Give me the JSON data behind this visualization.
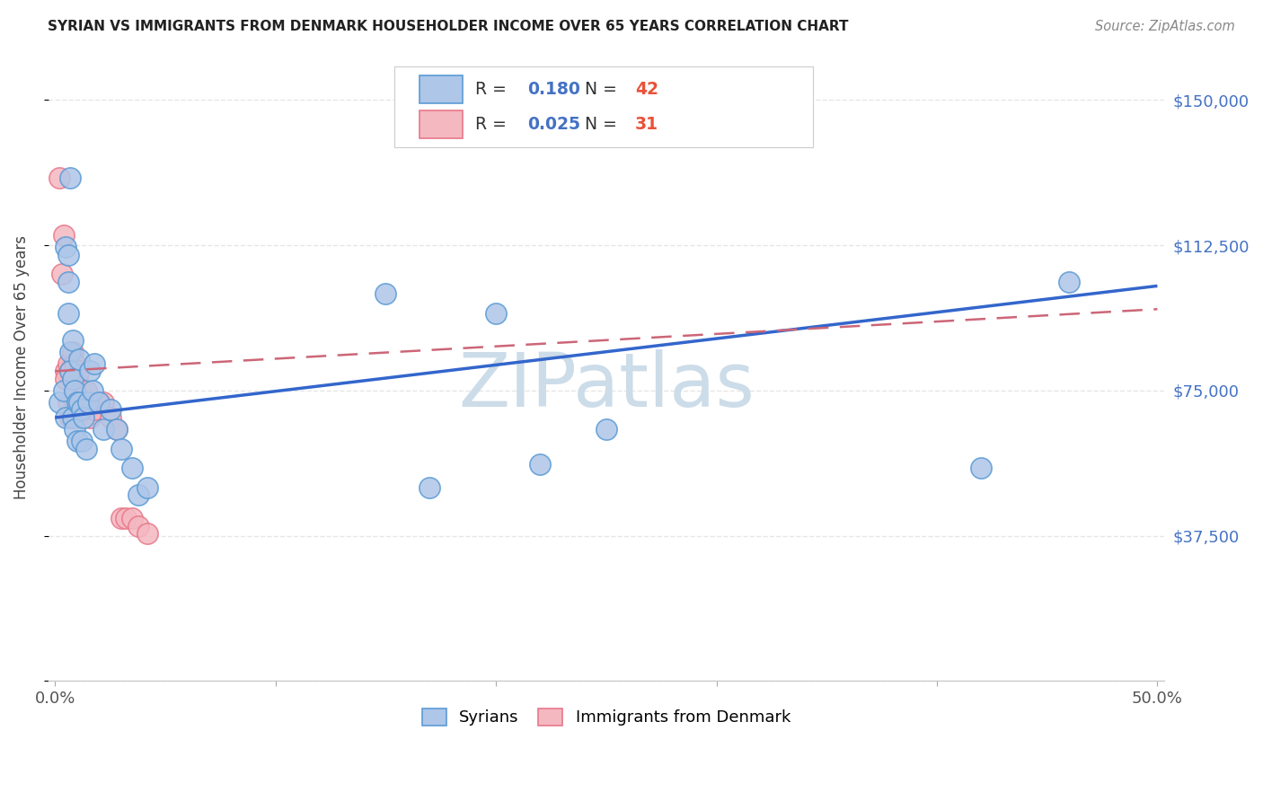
{
  "title": "SYRIAN VS IMMIGRANTS FROM DENMARK HOUSEHOLDER INCOME OVER 65 YEARS CORRELATION CHART",
  "source": "Source: ZipAtlas.com",
  "ylabel": "Householder Income Over 65 years",
  "xlim": [
    -0.003,
    0.503
  ],
  "ylim": [
    0,
    162000
  ],
  "yticks": [
    0,
    37500,
    75000,
    112500,
    150000
  ],
  "yticklabels_right": [
    "",
    "$37,500",
    "$75,000",
    "$112,500",
    "$150,000"
  ],
  "xticks": [
    0.0,
    0.1,
    0.2,
    0.3,
    0.4,
    0.5
  ],
  "xticklabels": [
    "0.0%",
    "",
    "",
    "",
    "",
    "50.0%"
  ],
  "background_color": "#ffffff",
  "grid_color": "#e0e0e0",
  "syrian_fill": "#aec6e8",
  "syrian_edge": "#5b9bd5",
  "denmark_fill": "#f4b8c1",
  "denmark_edge": "#e8788a",
  "blue_text": "#4472c4",
  "red_text": "#e8523a",
  "watermark": "ZIPatlas",
  "watermark_color": "#ccdce8",
  "line_blue": "#3366cc",
  "line_pink": "#cc6677",
  "syrian_R": 0.18,
  "syrian_N": 42,
  "denmark_R": 0.025,
  "denmark_N": 31,
  "syrian_line_y0": 68000,
  "syrian_line_y1": 102000,
  "denmark_line_y0": 80000,
  "denmark_line_y1": 96000,
  "syrians_x": [
    0.002,
    0.004,
    0.005,
    0.005,
    0.006,
    0.006,
    0.006,
    0.007,
    0.007,
    0.007,
    0.008,
    0.008,
    0.008,
    0.009,
    0.009,
    0.01,
    0.01,
    0.011,
    0.011,
    0.012,
    0.012,
    0.013,
    0.014,
    0.015,
    0.016,
    0.017,
    0.018,
    0.02,
    0.022,
    0.025,
    0.028,
    0.03,
    0.035,
    0.038,
    0.042,
    0.15,
    0.17,
    0.2,
    0.22,
    0.25,
    0.42,
    0.46
  ],
  "syrians_y": [
    72000,
    75000,
    68000,
    112000,
    110000,
    103000,
    95000,
    85000,
    80000,
    130000,
    88000,
    78000,
    68000,
    75000,
    65000,
    72000,
    62000,
    83000,
    72000,
    70000,
    62000,
    68000,
    60000,
    72000,
    80000,
    75000,
    82000,
    72000,
    65000,
    70000,
    65000,
    60000,
    55000,
    48000,
    50000,
    100000,
    50000,
    95000,
    56000,
    65000,
    55000,
    103000
  ],
  "denmark_x": [
    0.002,
    0.003,
    0.004,
    0.005,
    0.005,
    0.006,
    0.006,
    0.007,
    0.007,
    0.008,
    0.008,
    0.009,
    0.009,
    0.01,
    0.01,
    0.011,
    0.012,
    0.013,
    0.014,
    0.015,
    0.016,
    0.018,
    0.02,
    0.022,
    0.025,
    0.028,
    0.03,
    0.032,
    0.035,
    0.038,
    0.042
  ],
  "denmark_y": [
    130000,
    105000,
    115000,
    80000,
    78000,
    82000,
    72000,
    80000,
    68000,
    85000,
    78000,
    82000,
    72000,
    78000,
    68000,
    80000,
    75000,
    72000,
    75000,
    70000,
    68000,
    70000,
    72000,
    72000,
    68000,
    65000,
    42000,
    42000,
    42000,
    40000,
    38000
  ]
}
